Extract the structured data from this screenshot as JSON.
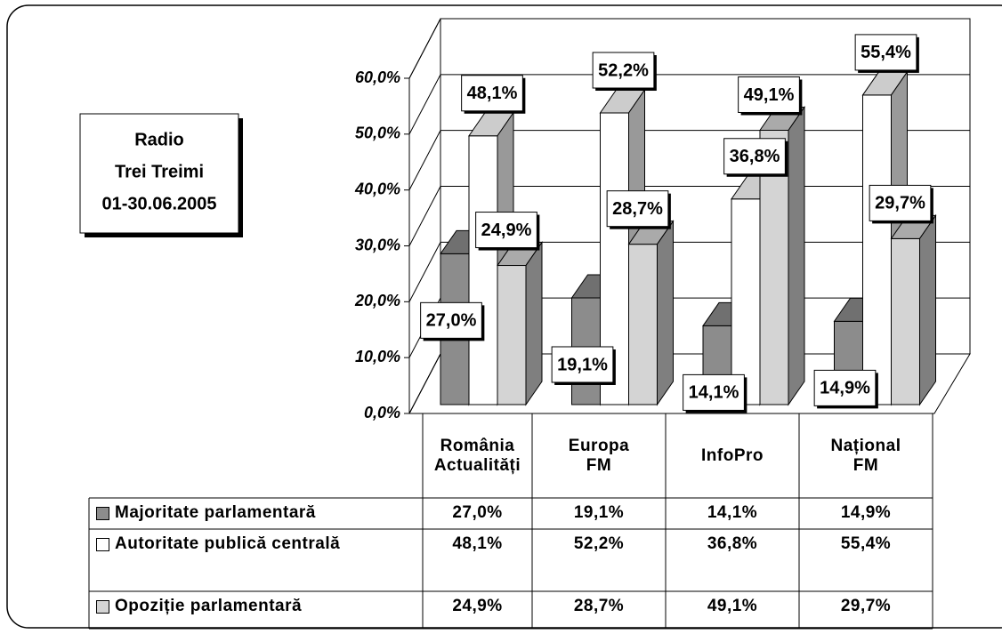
{
  "chart_data": {
    "type": "bar3d",
    "title": [
      "Radio",
      "Trei Treimi",
      "01-30.06.2005"
    ],
    "categories": [
      "România Actualități",
      "Europa FM",
      "InfoPro",
      "Național FM"
    ],
    "series": [
      {
        "name": "Majoritate parlamentară",
        "color": "#8c8c8c",
        "values": [
          27.0,
          19.1,
          14.1,
          14.9
        ],
        "value_labels": [
          "27,0%",
          "19,1%",
          "14,1%",
          "14,9%"
        ]
      },
      {
        "name": "Autoritate publică centrală",
        "color": "#ffffff",
        "values": [
          48.1,
          52.2,
          36.8,
          55.4
        ],
        "value_labels": [
          "48,1%",
          "52,2%",
          "36,8%",
          "55,4%"
        ]
      },
      {
        "name": "Opoziție parlamentară",
        "color": "#d4d4d4",
        "values": [
          24.9,
          28.7,
          49.1,
          29.7
        ],
        "value_labels": [
          "24,9%",
          "28,7%",
          "49,1%",
          "29,7%"
        ]
      }
    ],
    "ylim": [
      0,
      60
    ],
    "yticks": [
      {
        "value": 0,
        "label": "0,0%"
      },
      {
        "value": 10,
        "label": "10,0%"
      },
      {
        "value": 20,
        "label": "20,0%"
      },
      {
        "value": 30,
        "label": "30,0%"
      },
      {
        "value": 40,
        "label": "40,0%"
      },
      {
        "value": 50,
        "label": "50,0%"
      },
      {
        "value": 60,
        "label": "60,0%"
      }
    ],
    "grid": true
  }
}
